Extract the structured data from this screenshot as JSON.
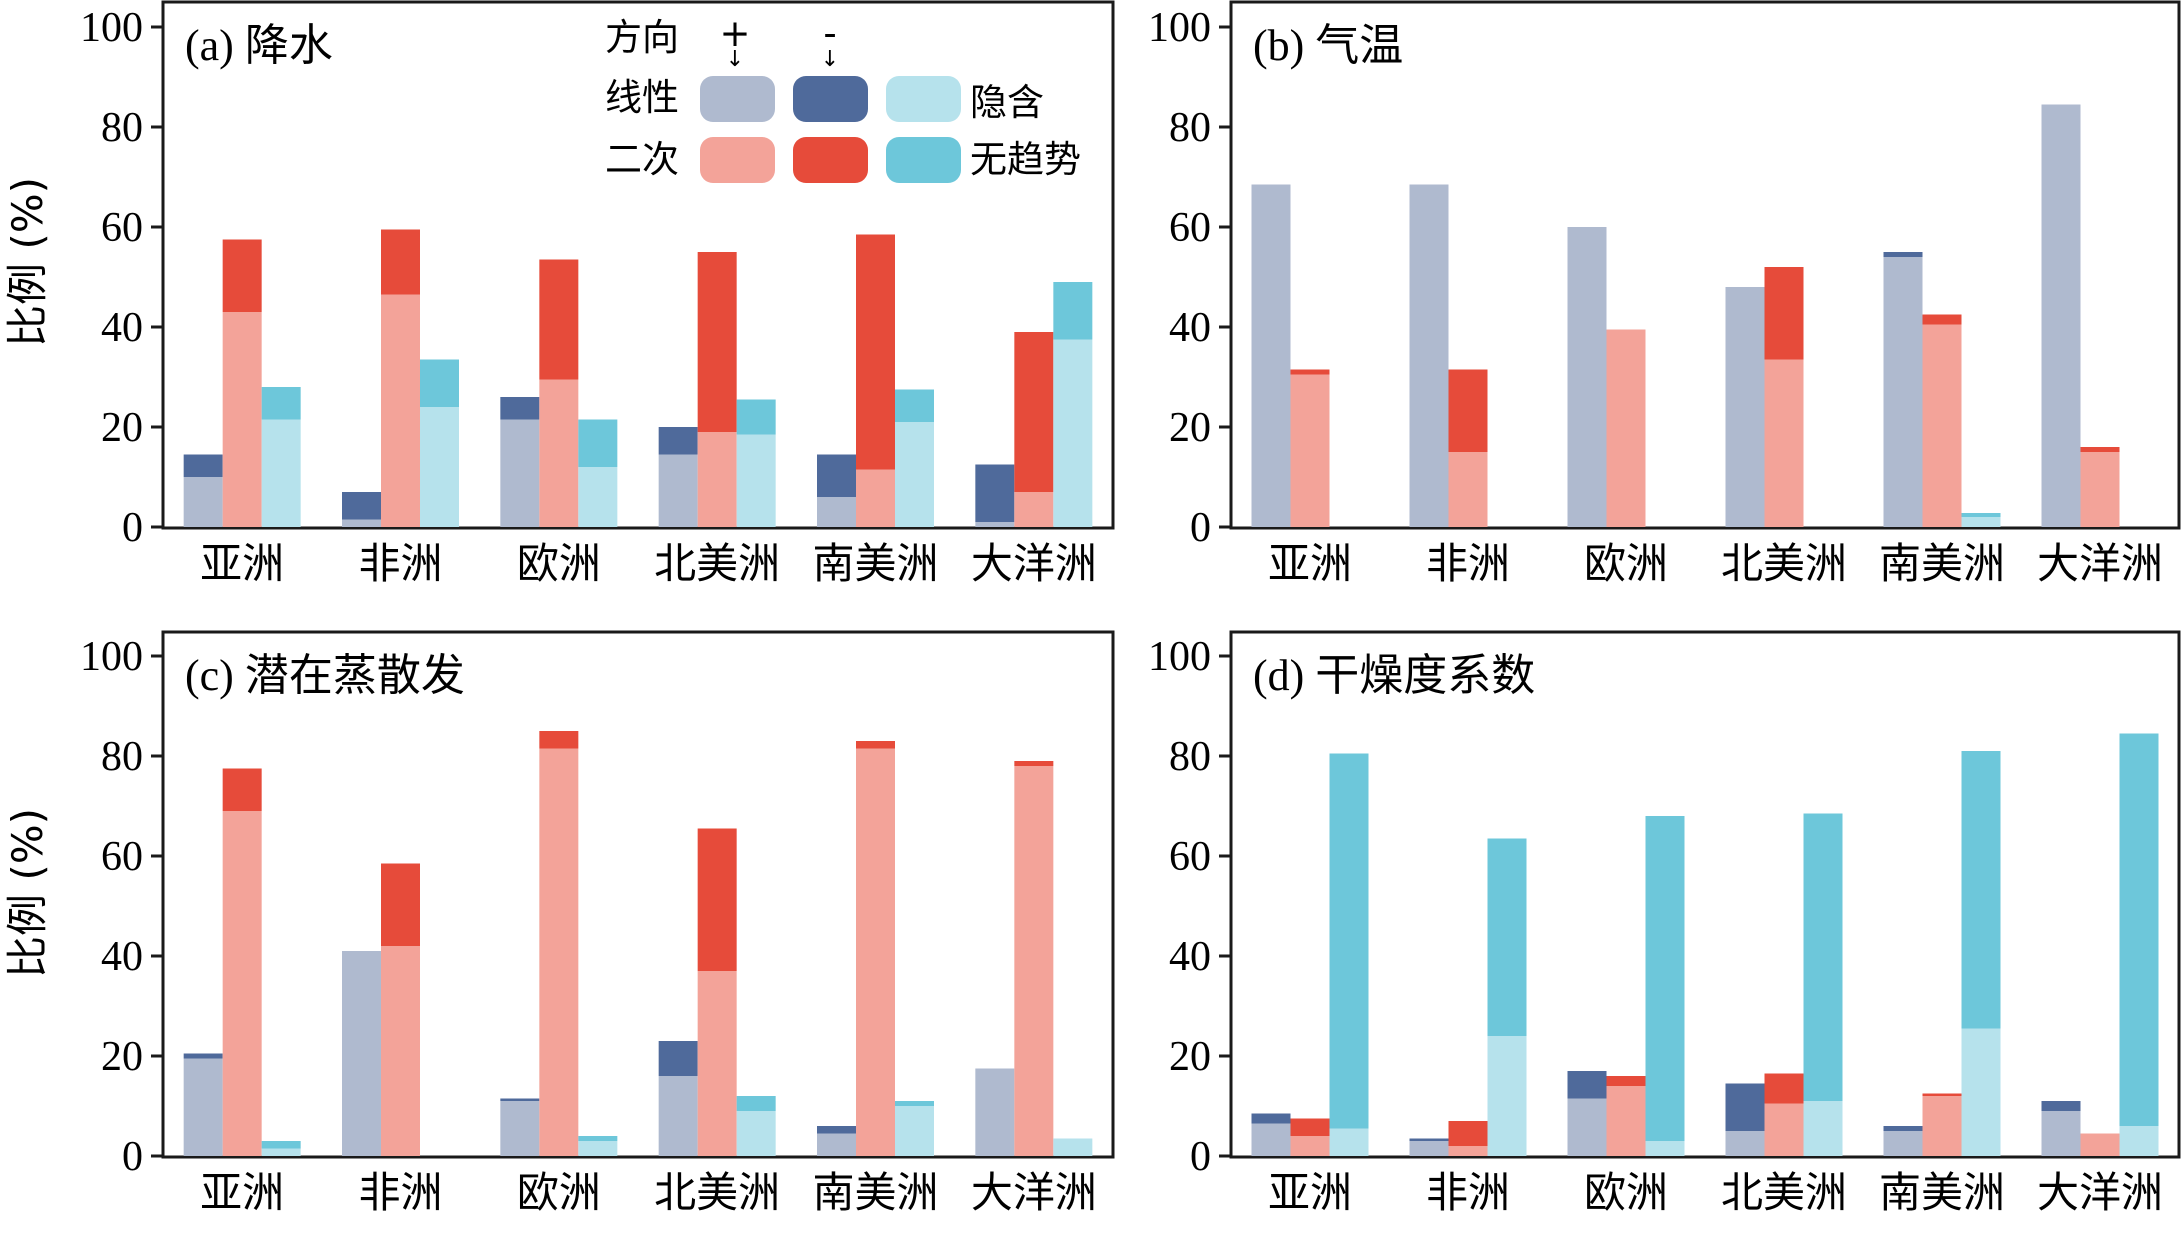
{
  "figure": {
    "ylabel": "比例 (%)",
    "legend": {
      "header_label": "方向",
      "plus_label": "+",
      "minus_label": "-",
      "row1_label": "线性",
      "row2_label": "二次",
      "implicit_label": "隐含",
      "notrend_label": "无趋势"
    }
  },
  "colors": {
    "linear_pos": "#afbacf",
    "linear_neg": "#4f6a9b",
    "implicit": "#b6e2ec",
    "quad_pos": "#f3a399",
    "quad_neg": "#e64b3a",
    "notrend": "#6dc7da"
  },
  "chart_data": [
    {
      "type": "bar",
      "title": "(a) 降水",
      "categories": [
        "亚洲",
        "非洲",
        "欧洲",
        "北美洲",
        "南美洲",
        "大洋洲"
      ],
      "ylim": [
        0,
        100
      ],
      "yticks": [
        "0",
        "20",
        "40",
        "60",
        "80",
        "100"
      ],
      "linear": {
        "pos": [
          10,
          1.5,
          21.5,
          14.5,
          6,
          1
        ],
        "neg": [
          4.5,
          5.5,
          4.5,
          5.5,
          8.5,
          11.5
        ]
      },
      "quadratic": {
        "pos": [
          43,
          46.5,
          29.5,
          19,
          11.5,
          7
        ],
        "neg": [
          14.5,
          13,
          24,
          36,
          47,
          32
        ]
      },
      "implicit_notrend": {
        "implicit": [
          21.5,
          24,
          12,
          18.5,
          21,
          37.5
        ],
        "notrend": [
          6.5,
          9.5,
          9.5,
          7,
          6.5,
          11.5
        ]
      }
    },
    {
      "type": "bar",
      "title": "(b) 气温",
      "categories": [
        "亚洲",
        "非洲",
        "欧洲",
        "北美洲",
        "南美洲",
        "大洋洲"
      ],
      "ylim": [
        0,
        100
      ],
      "yticks": [
        "0",
        "20",
        "40",
        "60",
        "80",
        "100"
      ],
      "linear": {
        "pos": [
          68.5,
          68.5,
          60,
          48,
          54,
          84.5
        ],
        "neg": [
          0,
          0,
          0,
          0,
          1,
          0
        ]
      },
      "quadratic": {
        "pos": [
          30.5,
          15,
          39.5,
          33.5,
          40.5,
          15
        ],
        "neg": [
          1,
          16.5,
          0,
          18.5,
          2,
          1
        ]
      },
      "implicit_notrend": {
        "implicit": [
          0,
          0,
          0,
          0,
          2,
          0
        ],
        "notrend": [
          0,
          0,
          0,
          0,
          0.8,
          0
        ]
      }
    },
    {
      "type": "bar",
      "title": "(c) 潜在蒸散发",
      "categories": [
        "亚洲",
        "非洲",
        "欧洲",
        "北美洲",
        "南美洲",
        "大洋洲"
      ],
      "ylim": [
        0,
        100
      ],
      "yticks": [
        "0",
        "20",
        "40",
        "60",
        "80",
        "100"
      ],
      "linear": {
        "pos": [
          19.5,
          41,
          11,
          16,
          4.5,
          17.5
        ],
        "neg": [
          1,
          0,
          0.5,
          7,
          1.5,
          0
        ]
      },
      "quadratic": {
        "pos": [
          69,
          42,
          81.5,
          37,
          81.5,
          78
        ],
        "neg": [
          8.5,
          16.5,
          3.5,
          28.5,
          1.5,
          1
        ]
      },
      "implicit_notrend": {
        "implicit": [
          1.5,
          0,
          3,
          9,
          10,
          3.5
        ],
        "notrend": [
          1.5,
          0,
          1,
          3,
          1,
          0
        ]
      }
    },
    {
      "type": "bar",
      "title": "(d) 干燥度系数",
      "categories": [
        "亚洲",
        "非洲",
        "欧洲",
        "北美洲",
        "南美洲",
        "大洋洲"
      ],
      "ylim": [
        0,
        100
      ],
      "yticks": [
        "0",
        "20",
        "40",
        "60",
        "80",
        "100"
      ],
      "linear": {
        "pos": [
          6.5,
          3,
          11.5,
          5,
          5,
          9
        ],
        "neg": [
          2,
          0.5,
          5.5,
          9.5,
          1,
          2
        ]
      },
      "quadratic": {
        "pos": [
          4,
          2,
          14,
          10.5,
          12,
          4.5
        ],
        "neg": [
          3.5,
          5,
          2,
          6,
          0.5,
          0
        ]
      },
      "implicit_notrend": {
        "implicit": [
          5.5,
          24,
          3,
          11,
          25.5,
          6
        ],
        "notrend": [
          75,
          39.5,
          65,
          57.5,
          55.5,
          78.5
        ]
      }
    }
  ]
}
